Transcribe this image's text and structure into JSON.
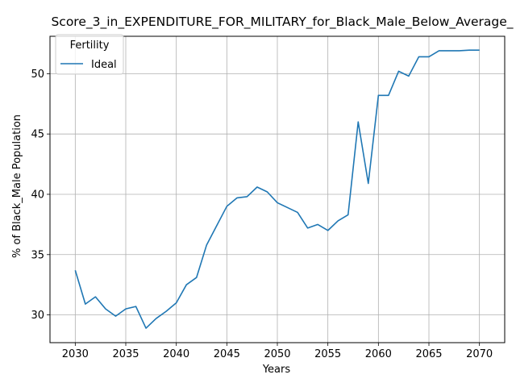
{
  "chart_data": {
    "type": "line",
    "title": "Score_3_in_EXPENDITURE_FOR_MILITARY_for_Black_Male_Below_Average_",
    "xlabel": "Years",
    "ylabel": "% of Black_Male Population",
    "xlim": [
      2027.5,
      2072.5
    ],
    "ylim": [
      27.7,
      53.1
    ],
    "xticks": [
      2030,
      2035,
      2040,
      2045,
      2050,
      2055,
      2060,
      2065,
      2070
    ],
    "yticks": [
      30,
      35,
      40,
      45,
      50
    ],
    "grid": true,
    "legend": {
      "title": "Fertility",
      "placement": "top-left"
    },
    "series": [
      {
        "name": "Ideal",
        "color": "#1f77b4",
        "x": [
          2030,
          2031,
          2032,
          2033,
          2034,
          2035,
          2036,
          2037,
          2038,
          2039,
          2040,
          2041,
          2042,
          2043,
          2044,
          2045,
          2046,
          2047,
          2048,
          2049,
          2050,
          2051,
          2052,
          2053,
          2054,
          2055,
          2056,
          2057,
          2058,
          2059,
          2060,
          2061,
          2062,
          2063,
          2064,
          2065,
          2066,
          2067,
          2068,
          2069,
          2070
        ],
        "y": [
          33.7,
          30.9,
          31.5,
          30.5,
          29.9,
          30.5,
          30.7,
          28.9,
          29.7,
          30.3,
          31.0,
          32.5,
          33.1,
          35.8,
          37.4,
          39.0,
          39.7,
          39.8,
          40.6,
          40.2,
          39.3,
          38.9,
          38.5,
          37.2,
          37.5,
          37.0,
          37.8,
          38.3,
          46.0,
          40.9,
          48.2,
          48.2,
          50.2,
          49.8,
          51.4,
          51.4,
          51.9,
          51.9,
          51.9,
          51.95,
          51.95
        ]
      }
    ]
  }
}
